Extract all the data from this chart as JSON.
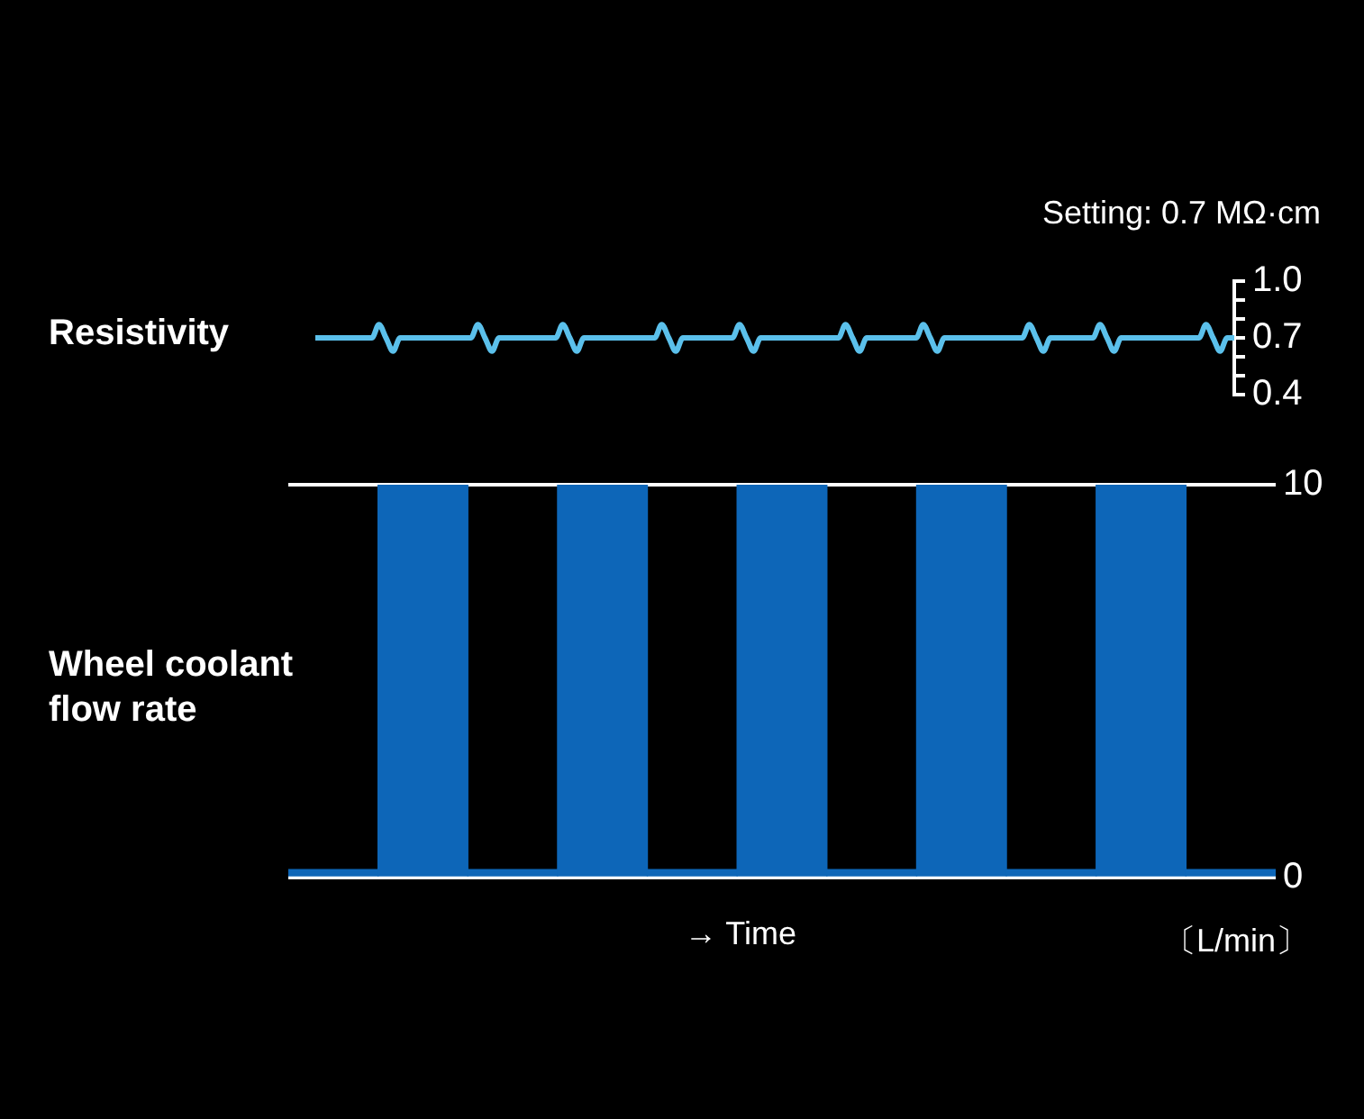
{
  "chart_data": [
    {
      "type": "line",
      "ylabel": "Resistivity",
      "annotations": [
        "Setting: 0.7 MΩ·cm"
      ],
      "marker": "none",
      "tick_labels": "y",
      "categories": [
        null,
        null,
        null,
        null,
        null,
        null,
        null,
        null,
        null,
        null,
        null,
        null,
        null,
        null,
        null,
        null,
        null,
        null,
        null,
        null,
        null,
        null,
        null,
        null,
        null,
        null,
        null,
        null,
        null,
        null,
        null,
        null,
        null,
        null,
        null,
        null,
        null,
        null,
        null,
        null,
        null,
        null,
        null,
        null,
        null,
        null,
        null,
        null,
        null,
        null,
        null,
        null,
        null,
        null,
        null,
        null,
        null,
        null,
        null,
        null,
        null,
        null,
        null,
        null,
        null,
        null,
        null,
        null,
        null,
        null,
        null,
        null,
        null,
        null,
        null,
        null,
        null,
        null,
        null,
        null,
        null,
        null,
        null,
        null,
        null,
        null,
        null,
        null,
        null,
        null,
        null,
        null,
        null,
        null,
        null,
        null,
        null,
        null,
        null,
        null,
        null,
        null,
        null,
        null,
        null,
        null,
        null,
        null,
        null,
        null,
        null,
        null,
        null,
        null,
        null,
        null,
        null,
        null,
        null,
        null,
        null,
        null,
        null,
        null,
        null,
        null,
        null,
        null,
        null,
        null,
        null
      ],
      "series": [
        {
          "color": "#5bc0eb",
          "values": [
            0.7,
            0.7,
            0.7,
            0.7,
            0.7,
            0.7,
            0.7,
            0.7,
            0.7,
            0.77,
            0.7,
            0.63,
            0.7,
            0.7,
            0.7,
            0.7,
            0.7,
            0.7,
            0.7,
            0.7,
            0.7,
            0.7,
            0.7,
            0.77,
            0.7,
            0.63,
            0.7,
            0.7,
            0.7,
            0.7,
            0.7,
            0.7,
            0.7,
            0.7,
            0.7,
            0.77,
            0.7,
            0.63,
            0.7,
            0.7,
            0.7,
            0.7,
            0.7,
            0.7,
            0.7,
            0.7,
            0.7,
            0.7,
            0.7,
            0.77,
            0.7,
            0.63,
            0.7,
            0.7,
            0.7,
            0.7,
            0.7,
            0.7,
            0.7,
            0.7,
            0.77,
            0.7,
            0.63,
            0.7,
            0.7,
            0.7,
            0.7,
            0.7,
            0.7,
            0.7,
            0.7,
            0.7,
            0.7,
            0.7,
            0.7,
            0.77,
            0.7,
            0.63,
            0.7,
            0.7,
            0.7,
            0.7,
            0.7,
            0.7,
            0.7,
            0.7,
            0.77,
            0.7,
            0.63,
            0.7,
            0.7,
            0.7,
            0.7,
            0.7,
            0.7,
            0.7,
            0.7,
            0.7,
            0.7,
            0.7,
            0.7,
            0.77,
            0.7,
            0.63,
            0.7,
            0.7,
            0.7,
            0.7,
            0.7,
            0.7,
            0.7,
            0.77,
            0.7,
            0.63,
            0.7,
            0.7,
            0.7,
            0.7,
            0.7,
            0.7,
            0.7,
            0.7,
            0.7,
            0.7,
            0.7,
            0.7,
            0.77,
            0.7,
            0.63,
            0.7,
            0.7
          ]
        }
      ],
      "ylim": [
        0.4,
        1.0
      ],
      "yticks": [
        {
          "value": 0.4,
          "label": "0.4"
        },
        {
          "value": 0.5,
          "label": null
        },
        {
          "value": 0.6,
          "label": null
        },
        {
          "value": 0.7,
          "label": "0.7"
        },
        {
          "value": 0.8,
          "label": null
        },
        {
          "value": 0.9,
          "label": null
        },
        {
          "value": 1.0,
          "label": "1.0"
        }
      ]
    },
    {
      "type": "bar",
      "ylabel": "Wheel coolant flow rate",
      "xlabel": "→ Time",
      "annotations": [
        "〔L/min〕"
      ],
      "tick_labels": "y",
      "grid": "y",
      "categories": [
        null,
        null,
        null,
        null,
        null,
        null,
        null,
        null,
        null,
        null,
        null
      ],
      "values": [
        0.2,
        10,
        0.2,
        10,
        0.2,
        10,
        0.2,
        10,
        0.2,
        10,
        0.2
      ],
      "color": "#0d66b8",
      "ylim": [
        0,
        10
      ],
      "yticks": [
        0,
        10
      ]
    }
  ]
}
